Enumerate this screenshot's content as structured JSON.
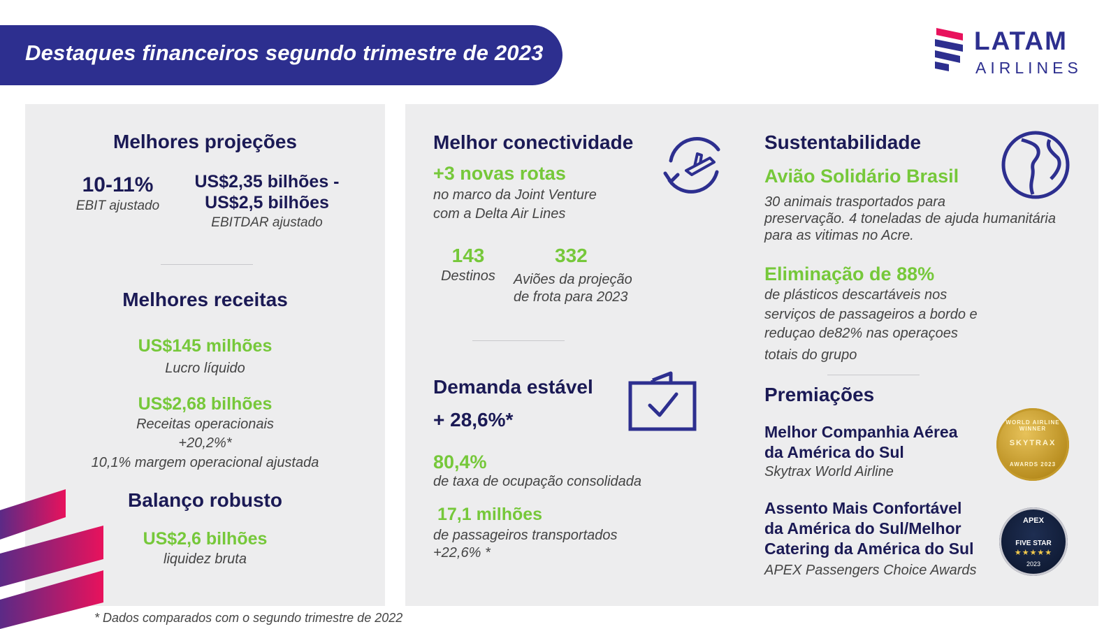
{
  "header": {
    "title": "Destaques financeiros segundo trimestre de 2023",
    "logo_line1": "LATAM",
    "logo_line2": "AIRLINES"
  },
  "left": {
    "projections": {
      "heading": "Melhores projeções",
      "ebit_value": "10-11%",
      "ebit_label": "EBIT ajustado",
      "ebitdar_value_line1": "US$2,35 bilhões -",
      "ebitdar_value_line2": "US$2,5 bilhões",
      "ebitdar_label": "EBITDAR ajustado"
    },
    "revenues": {
      "heading": "Melhores receitas",
      "net_income_value": "US$145 milhões",
      "net_income_label": "Lucro líquido",
      "op_revenue_value": "US$2,68 bilhões",
      "op_revenue_label": "Receitas operacionais",
      "op_revenue_growth": "+20,2%*",
      "op_margin": "10,1% margem operacional ajustada"
    },
    "balance": {
      "heading": "Balanço robusto",
      "liquidity_value": "US$2,6 bilhões",
      "liquidity_label": "liquidez bruta"
    }
  },
  "connectivity": {
    "heading": "Melhor conectividade",
    "routes_value": "+3 novas rotas",
    "routes_line1": "no marco da Joint Venture",
    "routes_line2": "com a Delta Air Lines",
    "destinations_value": "143",
    "destinations_label": "Destinos",
    "fleet_value": "332",
    "fleet_line1": "Aviões da projeção",
    "fleet_line2": "de frota para 2023",
    "icon": "plane-circle-icon"
  },
  "demand": {
    "heading": "Demanda estável",
    "growth": "+ 28,6%*",
    "load_factor_value": "80,4%",
    "load_factor_label": "de taxa de ocupação consolidada",
    "passengers_value": "17,1 milhões",
    "passengers_label": "de passageiros transportados",
    "passengers_growth": "+22,6% *",
    "icon": "suitcase-check-icon"
  },
  "sustainability": {
    "heading": "Sustentabilidade",
    "program_title": "Avião Solidário Brasil",
    "program_line1": "30 animais trasportados para",
    "program_line2": "preservação. 4 toneladas de ajuda humanitária",
    "program_line3": "para as vitimas no Acre.",
    "plastics_value": "Eliminação de 88%",
    "plastics_line1": "de plásticos descartáveis nos",
    "plastics_line2": "serviços de passageiros a bordo e",
    "plastics_line3": "reduçao de82% nas operaçoes",
    "plastics_line4": "totais do grupo",
    "icon": "globe-icon"
  },
  "awards": {
    "heading": "Premiações",
    "award1_line1": "Melhor Companhia Aérea",
    "award1_line2": "da América do Sul",
    "award1_source": "Skytrax World Airline",
    "award1_badge_top": "WORLD AIRLINE WINNER",
    "award1_badge_mid": "SKYTRAX",
    "award1_badge_bottom": "AWARDS 2023",
    "award2_line1": "Assento Mais Confortável",
    "award2_line2": "da América do Sul/Melhor",
    "award2_line3": "Catering da América do Sul",
    "award2_source": "APEX Passengers Choice Awards",
    "award2_badge_top": "APEX",
    "award2_badge_mid": "FIVE STAR",
    "award2_badge_stars": "★★★★★",
    "award2_badge_year": "2023"
  },
  "footnote": "* Dados comparados com o segundo trimestre de 2022",
  "colors": {
    "navy": "#2d2f8f",
    "text_navy": "#1b1a55",
    "green": "#76c83a",
    "panel": "#ededee",
    "magenta": "#e8125c",
    "purple": "#5b2a86"
  }
}
